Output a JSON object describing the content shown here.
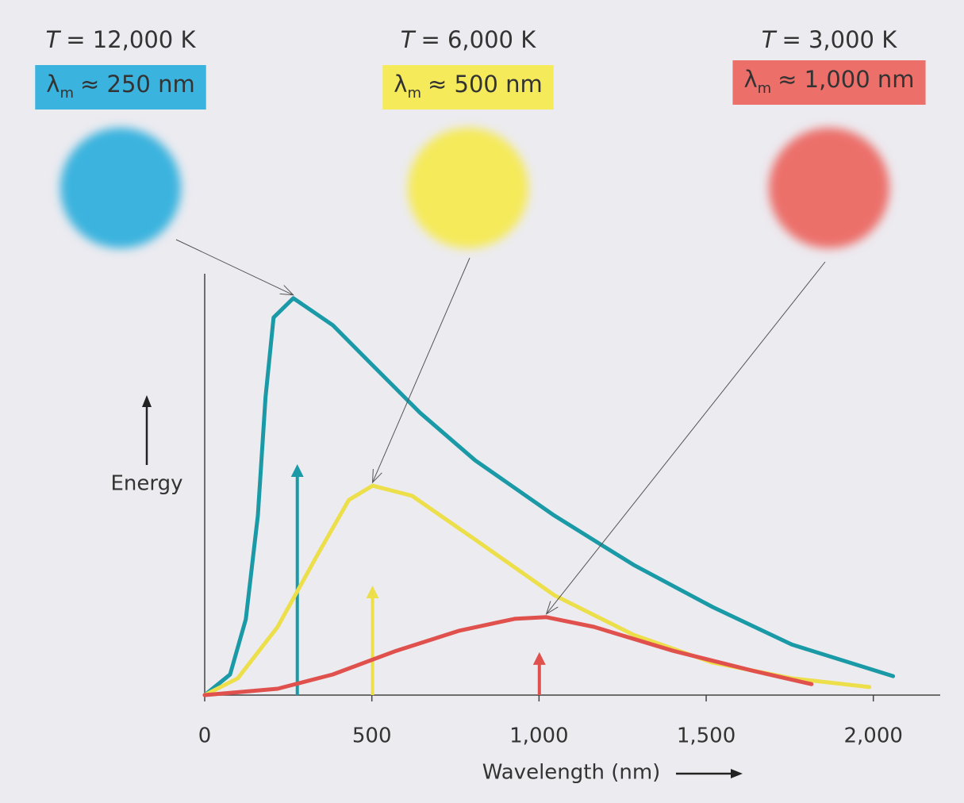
{
  "chart_data": {
    "type": "line",
    "x_label": "Wavelength (nm)",
    "y_label": "Energy",
    "xlim": [
      0,
      2200
    ],
    "xticks": [
      0,
      500,
      {
        "value": 1000,
        "label": "1,000"
      },
      {
        "value": 1500,
        "label": "1,500"
      },
      {
        "value": 2000,
        "label": "2,000"
      }
    ],
    "ylim": [
      0,
      100
    ],
    "series": [
      {
        "color": "#1a9aa6",
        "circle_color": "#3ab3de",
        "temp_symbol": "T",
        "temp_text": "= 12,000 K",
        "peak_symbol": "λ",
        "peak_sub": "m",
        "peak_text": "≈ 250 nm",
        "x": [
          0,
          76,
          123,
          159,
          182,
          206,
          265,
          383,
          502,
          644,
          809,
          1046,
          1283,
          1519,
          1756,
          2059
        ],
        "values": [
          0,
          4.9,
          18,
          42.6,
          70.8,
          89.6,
          94.2,
          87.8,
          78.3,
          67,
          55.7,
          42.6,
          30.9,
          20.9,
          12,
          4.5
        ],
        "arrow": {
          "x": 277,
          "value": 54.8
        }
      },
      {
        "color": "#ecdf4a",
        "circle_color": "#f5ea5a",
        "temp_symbol": "T",
        "temp_text": "= 6,000 K",
        "peak_symbol": "λ",
        "peak_sub": "m",
        "peak_text": "≈ 500 nm",
        "x": [
          0,
          99,
          218,
          336,
          431,
          502,
          620,
          809,
          1046,
          1283,
          1519,
          1756,
          1988
        ],
        "values": [
          0,
          4,
          16.2,
          33.1,
          46.3,
          49.7,
          47.3,
          36.9,
          23.7,
          14.3,
          7.7,
          4,
          1.9
        ],
        "arrow": {
          "x": 502,
          "value": 26
        }
      },
      {
        "color": "#e0514d",
        "circle_color": "#ec6f6a",
        "temp_symbol": "T",
        "temp_text": "= 3,000 K",
        "peak_symbol": "λ",
        "peak_sub": "m",
        "peak_text": "≈ 1,000 nm",
        "x": [
          0,
          218,
          383,
          573,
          762,
          927,
          1022,
          1164,
          1401,
          1638,
          1815
        ],
        "values": [
          0,
          1.5,
          4.9,
          10.5,
          15.3,
          18.1,
          18.5,
          16.2,
          10.5,
          5.8,
          2.6
        ],
        "arrow": {
          "x": 1001,
          "value": 10.2
        }
      }
    ]
  }
}
